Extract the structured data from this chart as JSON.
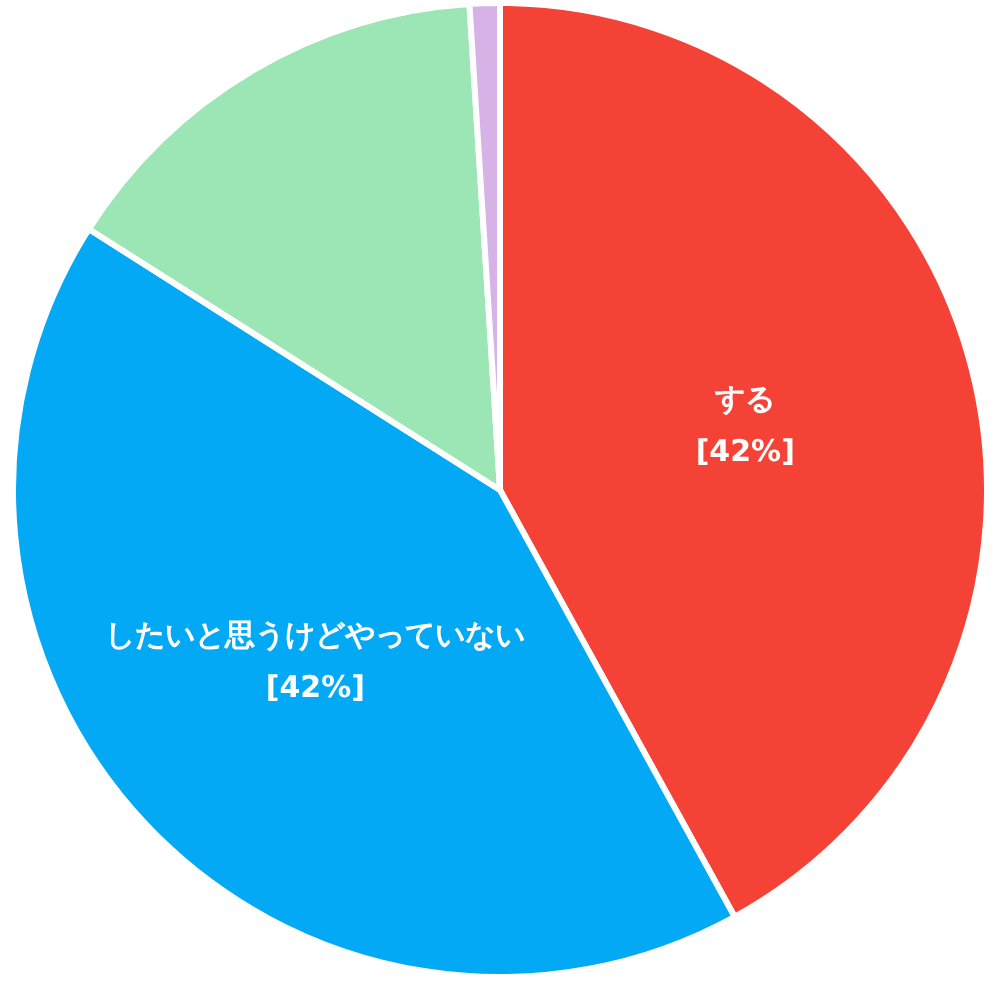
{
  "chart_data": {
    "type": "pie",
    "categories": [
      "する",
      "したいと思うけどやっていない",
      null,
      null
    ],
    "values": [
      42,
      42,
      15,
      1
    ],
    "colors": [
      "#f44336",
      "#03a9f4",
      "#9ce6b6",
      "#d6b2e6"
    ],
    "value_labels": [
      "[42%]",
      "[42%]",
      null,
      null
    ],
    "legend": false
  }
}
